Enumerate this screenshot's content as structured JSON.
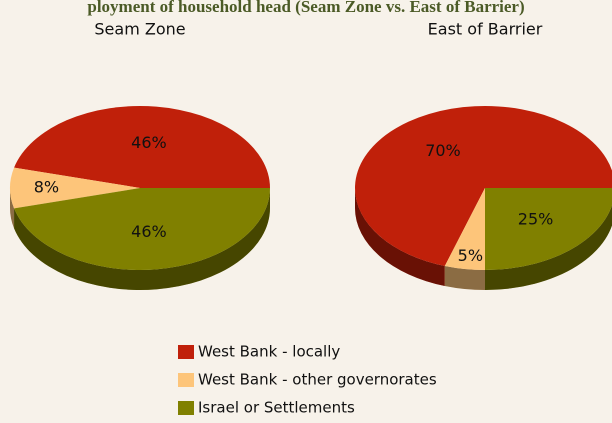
{
  "title": "ployment of household head (Seam Zone vs. East of Barrier)",
  "chart_data": [
    {
      "type": "pie",
      "title": "Seam Zone",
      "categories": [
        "West Bank - locally",
        "West Bank - other governorates",
        "Israel or Settlements"
      ],
      "values": [
        46,
        8,
        46
      ],
      "value_labels": [
        "46%",
        "8%",
        "46%"
      ],
      "colors": [
        "#c0200a",
        "#fdc57a",
        "#808000"
      ]
    },
    {
      "type": "pie",
      "title": "East of Barrier",
      "categories": [
        "West Bank - locally",
        "West Bank - other governorates",
        "Israel or Settlements"
      ],
      "values": [
        70,
        5,
        25
      ],
      "value_labels": [
        "70%",
        "5%",
        "25%"
      ],
      "colors": [
        "#c0200a",
        "#fdc57a",
        "#808000"
      ]
    }
  ]
}
